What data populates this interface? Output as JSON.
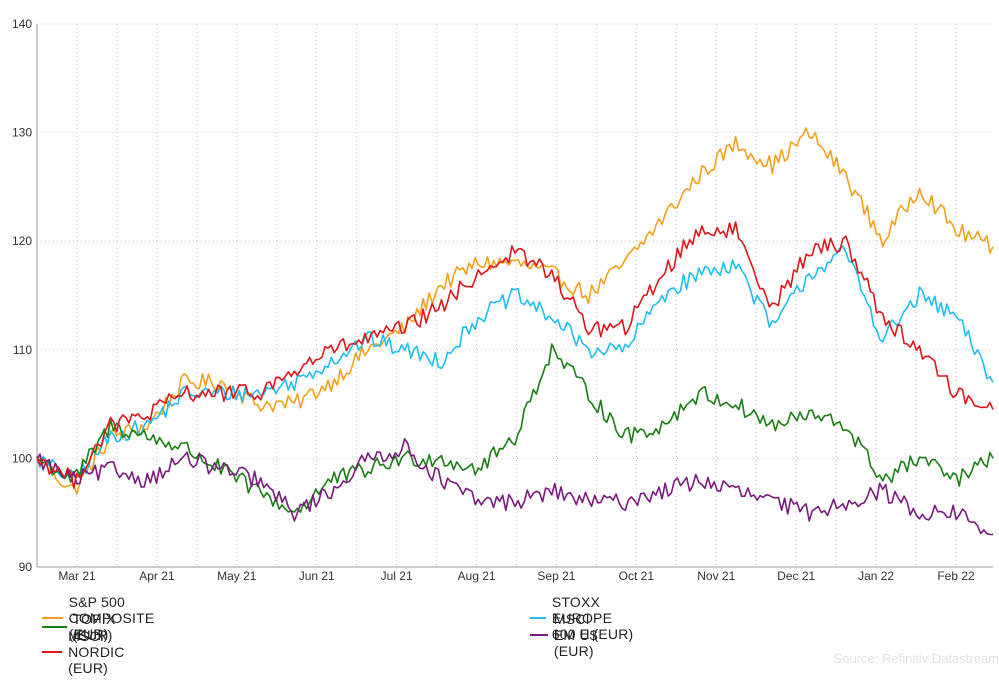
{
  "chart_data": {
    "type": "line",
    "title": "",
    "xlabel": "",
    "ylabel": "",
    "ylim": [
      90,
      140
    ],
    "yticks": [
      90,
      100,
      110,
      120,
      130,
      140
    ],
    "xticks": [
      "Mar 21",
      "Apr 21",
      "May 21",
      "Jun 21",
      "Jul 21",
      "Aug 21",
      "Sep 21",
      "Oct 21",
      "Nov 21",
      "Dec 21",
      "Jan 22",
      "Feb 22"
    ],
    "grid": true,
    "legend_position": "bottom",
    "x": [
      "Feb 21 (start)",
      "Mar 21 (early)",
      "Mar 21",
      "Mar 21 (late)",
      "Apr 21",
      "Apr 21 (late)",
      "May 21",
      "May 21 (late)",
      "Jun 21",
      "Jun 21 (late)",
      "Jul 21",
      "Jul 21 (late)",
      "Aug 21",
      "Aug 21 (late)",
      "Sep 21",
      "Sep 21 (late)",
      "Oct 21",
      "Oct 21 (late)",
      "Nov 21",
      "Nov 21 (late)",
      "Dec 21",
      "Dec 21 (late)",
      "Jan 22",
      "Jan 22 (late)",
      "Feb 22",
      "Feb 22 (late)",
      "end"
    ],
    "series": [
      {
        "name": "S&P 500 COMPOSITE (EUR)",
        "color": "#f5a01a",
        "values": [
          100,
          97,
          102,
          103,
          107,
          107,
          105,
          105,
          107,
          110,
          112,
          116,
          118,
          118,
          117,
          115,
          118,
          122,
          126,
          129,
          127,
          130,
          126,
          120,
          125,
          121,
          119.5
        ]
      },
      {
        "name": "STOXX EUROPE 600 E (EUR)",
        "color": "#1fbfef",
        "values": [
          100,
          98,
          102,
          103,
          106,
          106,
          106,
          107,
          109,
          111,
          110,
          109,
          113,
          115,
          113,
          110,
          110,
          115,
          117,
          118,
          112,
          117,
          119,
          111,
          115,
          113,
          107
        ]
      },
      {
        "name": "TOPIX (EUR)",
        "color": "#1a7f12",
        "values": [
          100,
          98,
          103,
          102,
          101,
          99,
          97,
          95,
          98,
          99,
          100,
          100,
          99,
          102,
          110,
          106,
          102,
          103,
          106,
          105,
          103,
          104,
          103,
          98,
          100,
          98,
          100
        ]
      },
      {
        "name": "MSCI EM U$ (EUR)",
        "color": "#7a1a7f",
        "values": [
          100,
          98,
          99,
          98,
          100,
          99,
          98,
          95,
          97,
          100,
          101,
          98,
          96,
          96,
          97,
          96,
          96,
          97,
          98,
          97,
          96,
          95,
          96,
          97,
          95,
          95,
          93
        ]
      },
      {
        "name": "MSCI NORDIC (EUR)",
        "color": "#e0161c",
        "values": [
          100,
          98,
          103,
          104,
          106,
          106,
          106,
          108,
          110,
          111,
          112,
          114,
          117,
          119,
          117,
          112,
          112,
          117,
          121,
          121,
          114,
          119,
          120,
          113,
          110,
          106,
          104.5
        ]
      }
    ]
  },
  "footer": {
    "source": "Source: Refinitiv Datastream"
  }
}
